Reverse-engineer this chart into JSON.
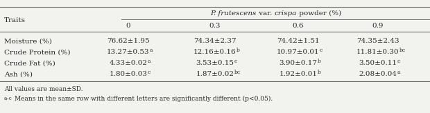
{
  "col_headers": [
    "0",
    "0.3",
    "0.6",
    "0.9"
  ],
  "row_label": "Traits",
  "rows": [
    {
      "trait": "Moisture (%)",
      "values": [
        "76.62±1.95",
        "74.34±2.37",
        "74.42±1.51",
        "74.35±2.43"
      ],
      "superscripts": [
        "",
        "",
        "",
        ""
      ]
    },
    {
      "trait": "Crude Protein (%)",
      "values": [
        "13.27±0.53",
        "12.16±0.16",
        "10.97±0.01",
        "11.81±0.30"
      ],
      "superscripts": [
        "a",
        "b",
        "c",
        "bc"
      ]
    },
    {
      "trait": "Crude Fat (%)",
      "values": [
        "4.33±0.02",
        "3.53±0.15",
        "3.90±0.17",
        "3.50±0.11"
      ],
      "superscripts": [
        "a",
        "c",
        "b",
        "c"
      ]
    },
    {
      "trait": "Ash (%)",
      "values": [
        "1.80±0.03",
        "1.87±0.02",
        "1.92±0.01",
        "2.08±0.04"
      ],
      "superscripts": [
        "c",
        "bc",
        "b",
        "a"
      ]
    }
  ],
  "footnote1": "All values are mean±SD.",
  "footnote2": " Means in the same row with different letters are significantly different (p<0.05).",
  "footnote2_super": "a–c",
  "bg_color": "#f2f2ee",
  "text_color": "#2a2a2a",
  "line_color": "#666666",
  "header_italic1": "P. frutescens",
  "header_mid": " var. ",
  "header_italic2": "crispa",
  "header_end": " powder (%)"
}
